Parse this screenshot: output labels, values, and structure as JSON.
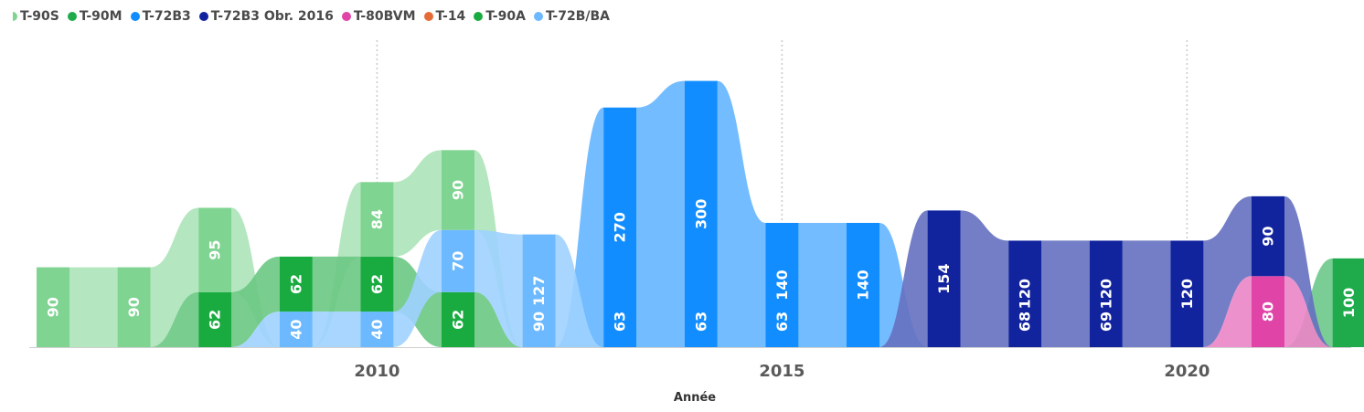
{
  "chart_data": {
    "type": "ribbon",
    "xlabel": "Année",
    "x_ticks": [
      "2010",
      "2015",
      "2020"
    ],
    "x": [
      2006,
      2007,
      2008,
      2009,
      2010,
      2011,
      2012,
      2013,
      2014,
      2015,
      2016,
      2017,
      2018,
      2019,
      2020,
      2021,
      2022
    ],
    "ylim": [
      0,
      350
    ],
    "legend_position": "top-left",
    "series": [
      {
        "name": "T-90S",
        "color": "#7fd491",
        "values": [
          90,
          90,
          95,
          0,
          84,
          90,
          0,
          0,
          0,
          0,
          0,
          0,
          0,
          0,
          0,
          0,
          0
        ]
      },
      {
        "name": "T-90M",
        "color": "#1fab4c",
        "values": [
          0,
          0,
          0,
          0,
          0,
          0,
          0,
          0,
          0,
          0,
          0,
          0,
          0,
          0,
          0,
          0,
          100
        ]
      },
      {
        "name": "T-72B3",
        "color": "#118dff",
        "values": [
          0,
          0,
          0,
          0,
          0,
          0,
          0,
          270,
          300,
          140,
          140,
          0,
          0,
          0,
          0,
          0,
          0
        ]
      },
      {
        "name": "T-72B3 Obr. 2016",
        "color": "#12239e",
        "values": [
          0,
          0,
          0,
          0,
          0,
          0,
          0,
          0,
          0,
          0,
          0,
          154,
          120,
          120,
          120,
          90,
          0
        ]
      },
      {
        "name": "T-80BVM",
        "color": "#e044a7",
        "values": [
          0,
          0,
          0,
          0,
          0,
          0,
          0,
          0,
          0,
          0,
          0,
          0,
          0,
          0,
          0,
          80,
          0
        ]
      },
      {
        "name": "T-14",
        "color": "#e66c37",
        "values": [
          0,
          0,
          0,
          0,
          0,
          0,
          0,
          0,
          0,
          0,
          0,
          0,
          0,
          0,
          0,
          0,
          0
        ]
      },
      {
        "name": "T-90A",
        "color": "#1aab40",
        "values": [
          0,
          0,
          62,
          62,
          62,
          62,
          0,
          0,
          0,
          0,
          0,
          0,
          0,
          0,
          0,
          0,
          0
        ]
      },
      {
        "name": "T-72B/BA",
        "color": "#6cb9ff",
        "values": [
          0,
          0,
          0,
          40,
          40,
          70,
          127,
          0,
          0,
          0,
          0,
          0,
          0,
          0,
          0,
          0,
          0
        ]
      }
    ],
    "data_labels": [
      {
        "x": 2006,
        "value": "90",
        "series": "T-90S"
      },
      {
        "x": 2007,
        "value": "90",
        "series": "T-90S"
      },
      {
        "x": 2008,
        "value": "95",
        "series": "T-90S"
      },
      {
        "x": 2008,
        "value": "62",
        "series": "T-90A"
      },
      {
        "x": 2009,
        "value": "62",
        "series": "T-90A"
      },
      {
        "x": 2009,
        "value": "40",
        "series": "T-72B/BA"
      },
      {
        "x": 2010,
        "value": "84",
        "series": "T-90S"
      },
      {
        "x": 2010,
        "value": "62",
        "series": "T-90A"
      },
      {
        "x": 2010,
        "value": "40",
        "series": "T-72B/BA"
      },
      {
        "x": 2011,
        "value": "90",
        "series": "T-90S"
      },
      {
        "x": 2011,
        "value": "70",
        "series": "T-72B/BA"
      },
      {
        "x": 2011,
        "value": "62",
        "series": "T-90A"
      },
      {
        "x": 2012,
        "value": "127",
        "series": "T-72B/BA"
      },
      {
        "x": 2012,
        "value": "90"
      },
      {
        "x": 2013,
        "value": "270",
        "series": "T-72B3"
      },
      {
        "x": 2013,
        "value": "63"
      },
      {
        "x": 2014,
        "value": "300",
        "series": "T-72B3"
      },
      {
        "x": 2014,
        "value": "63"
      },
      {
        "x": 2015,
        "value": "140",
        "series": "T-72B3"
      },
      {
        "x": 2015,
        "value": "63"
      },
      {
        "x": 2016,
        "value": "140",
        "series": "T-72B3"
      },
      {
        "x": 2017,
        "value": "154",
        "series": "T-72B3 Obr. 2016"
      },
      {
        "x": 2018,
        "value": "120",
        "series": "T-72B3 Obr. 2016"
      },
      {
        "x": 2018,
        "value": "68"
      },
      {
        "x": 2019,
        "value": "120",
        "series": "T-72B3 Obr. 2016"
      },
      {
        "x": 2019,
        "value": "69"
      },
      {
        "x": 2020,
        "value": "120",
        "series": "T-72B3 Obr. 2016"
      },
      {
        "x": 2021,
        "value": "90",
        "series": "T-72B3 Obr. 2016"
      },
      {
        "x": 2021,
        "value": "80",
        "series": "T-80BVM"
      },
      {
        "x": 2022,
        "value": "100",
        "series": "T-90M"
      }
    ]
  }
}
